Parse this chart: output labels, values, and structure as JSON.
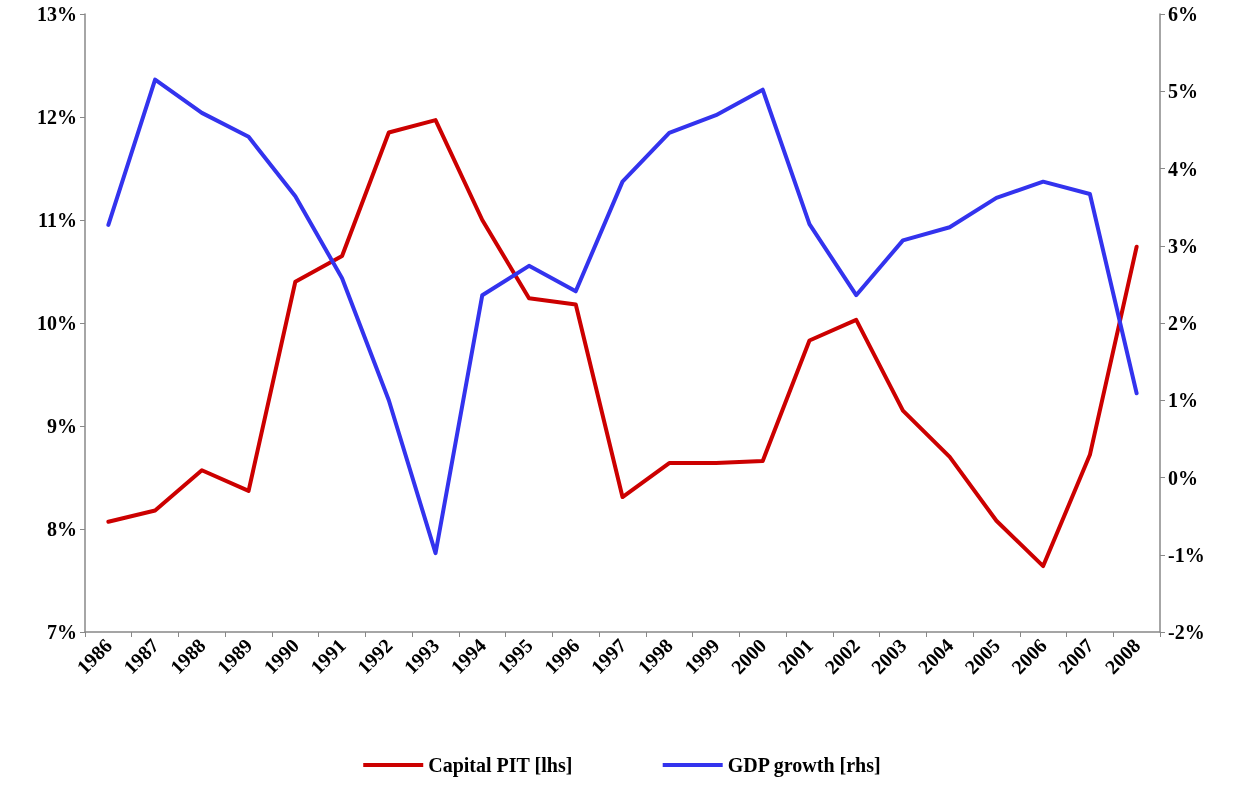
{
  "chart_data": {
    "type": "line",
    "categories": [
      "1986",
      "1987",
      "1988",
      "1989",
      "1990",
      "1991",
      "1992",
      "1993",
      "1994",
      "1995",
      "1996",
      "1997",
      "1998",
      "1999",
      "2000",
      "2001",
      "2002",
      "2003",
      "2004",
      "2005",
      "2006",
      "2007",
      "2008"
    ],
    "series": [
      {
        "name": "Capital PIT [lhs]",
        "color": "#cc0000",
        "values": [
          8.07,
          8.18,
          8.57,
          8.37,
          10.4,
          10.65,
          11.85,
          11.97,
          11.0,
          10.24,
          10.18,
          8.31,
          8.64,
          8.64,
          8.66,
          9.83,
          10.03,
          9.15,
          8.7,
          8.08,
          7.64,
          8.72,
          10.74
        ]
      },
      {
        "name": "GDP growth [rhs]",
        "color": "#3333ee",
        "axis": "y2",
        "values": [
          3.27,
          5.15,
          4.72,
          4.41,
          3.64,
          2.58,
          1.0,
          -0.98,
          2.36,
          2.74,
          2.41,
          3.83,
          4.46,
          4.69,
          5.02,
          3.28,
          2.36,
          3.07,
          3.24,
          3.62,
          3.83,
          3.67,
          1.09
        ]
      }
    ],
    "ylim": [
      7,
      13
    ],
    "yticks": [
      {
        "value": 7,
        "label": "7%"
      },
      {
        "value": 8,
        "label": "8%"
      },
      {
        "value": 9,
        "label": "9%"
      },
      {
        "value": 10,
        "label": "10%"
      },
      {
        "value": 11,
        "label": "11%"
      },
      {
        "value": 12,
        "label": "12%"
      },
      {
        "value": 13,
        "label": "13%"
      }
    ],
    "y2lim": [
      -2,
      6
    ],
    "y2ticks": [
      {
        "value": -2,
        "label": "-2%"
      },
      {
        "value": -1,
        "label": "-1%"
      },
      {
        "value": 0,
        "label": "0%"
      },
      {
        "value": 1,
        "label": "1%"
      },
      {
        "value": 2,
        "label": "2%"
      },
      {
        "value": 3,
        "label": "3%"
      },
      {
        "value": 4,
        "label": "4%"
      },
      {
        "value": 5,
        "label": "5%"
      },
      {
        "value": 6,
        "label": "6%"
      }
    ],
    "grid": false,
    "legend": "bottom",
    "marker": "none",
    "line_style": "solid"
  }
}
